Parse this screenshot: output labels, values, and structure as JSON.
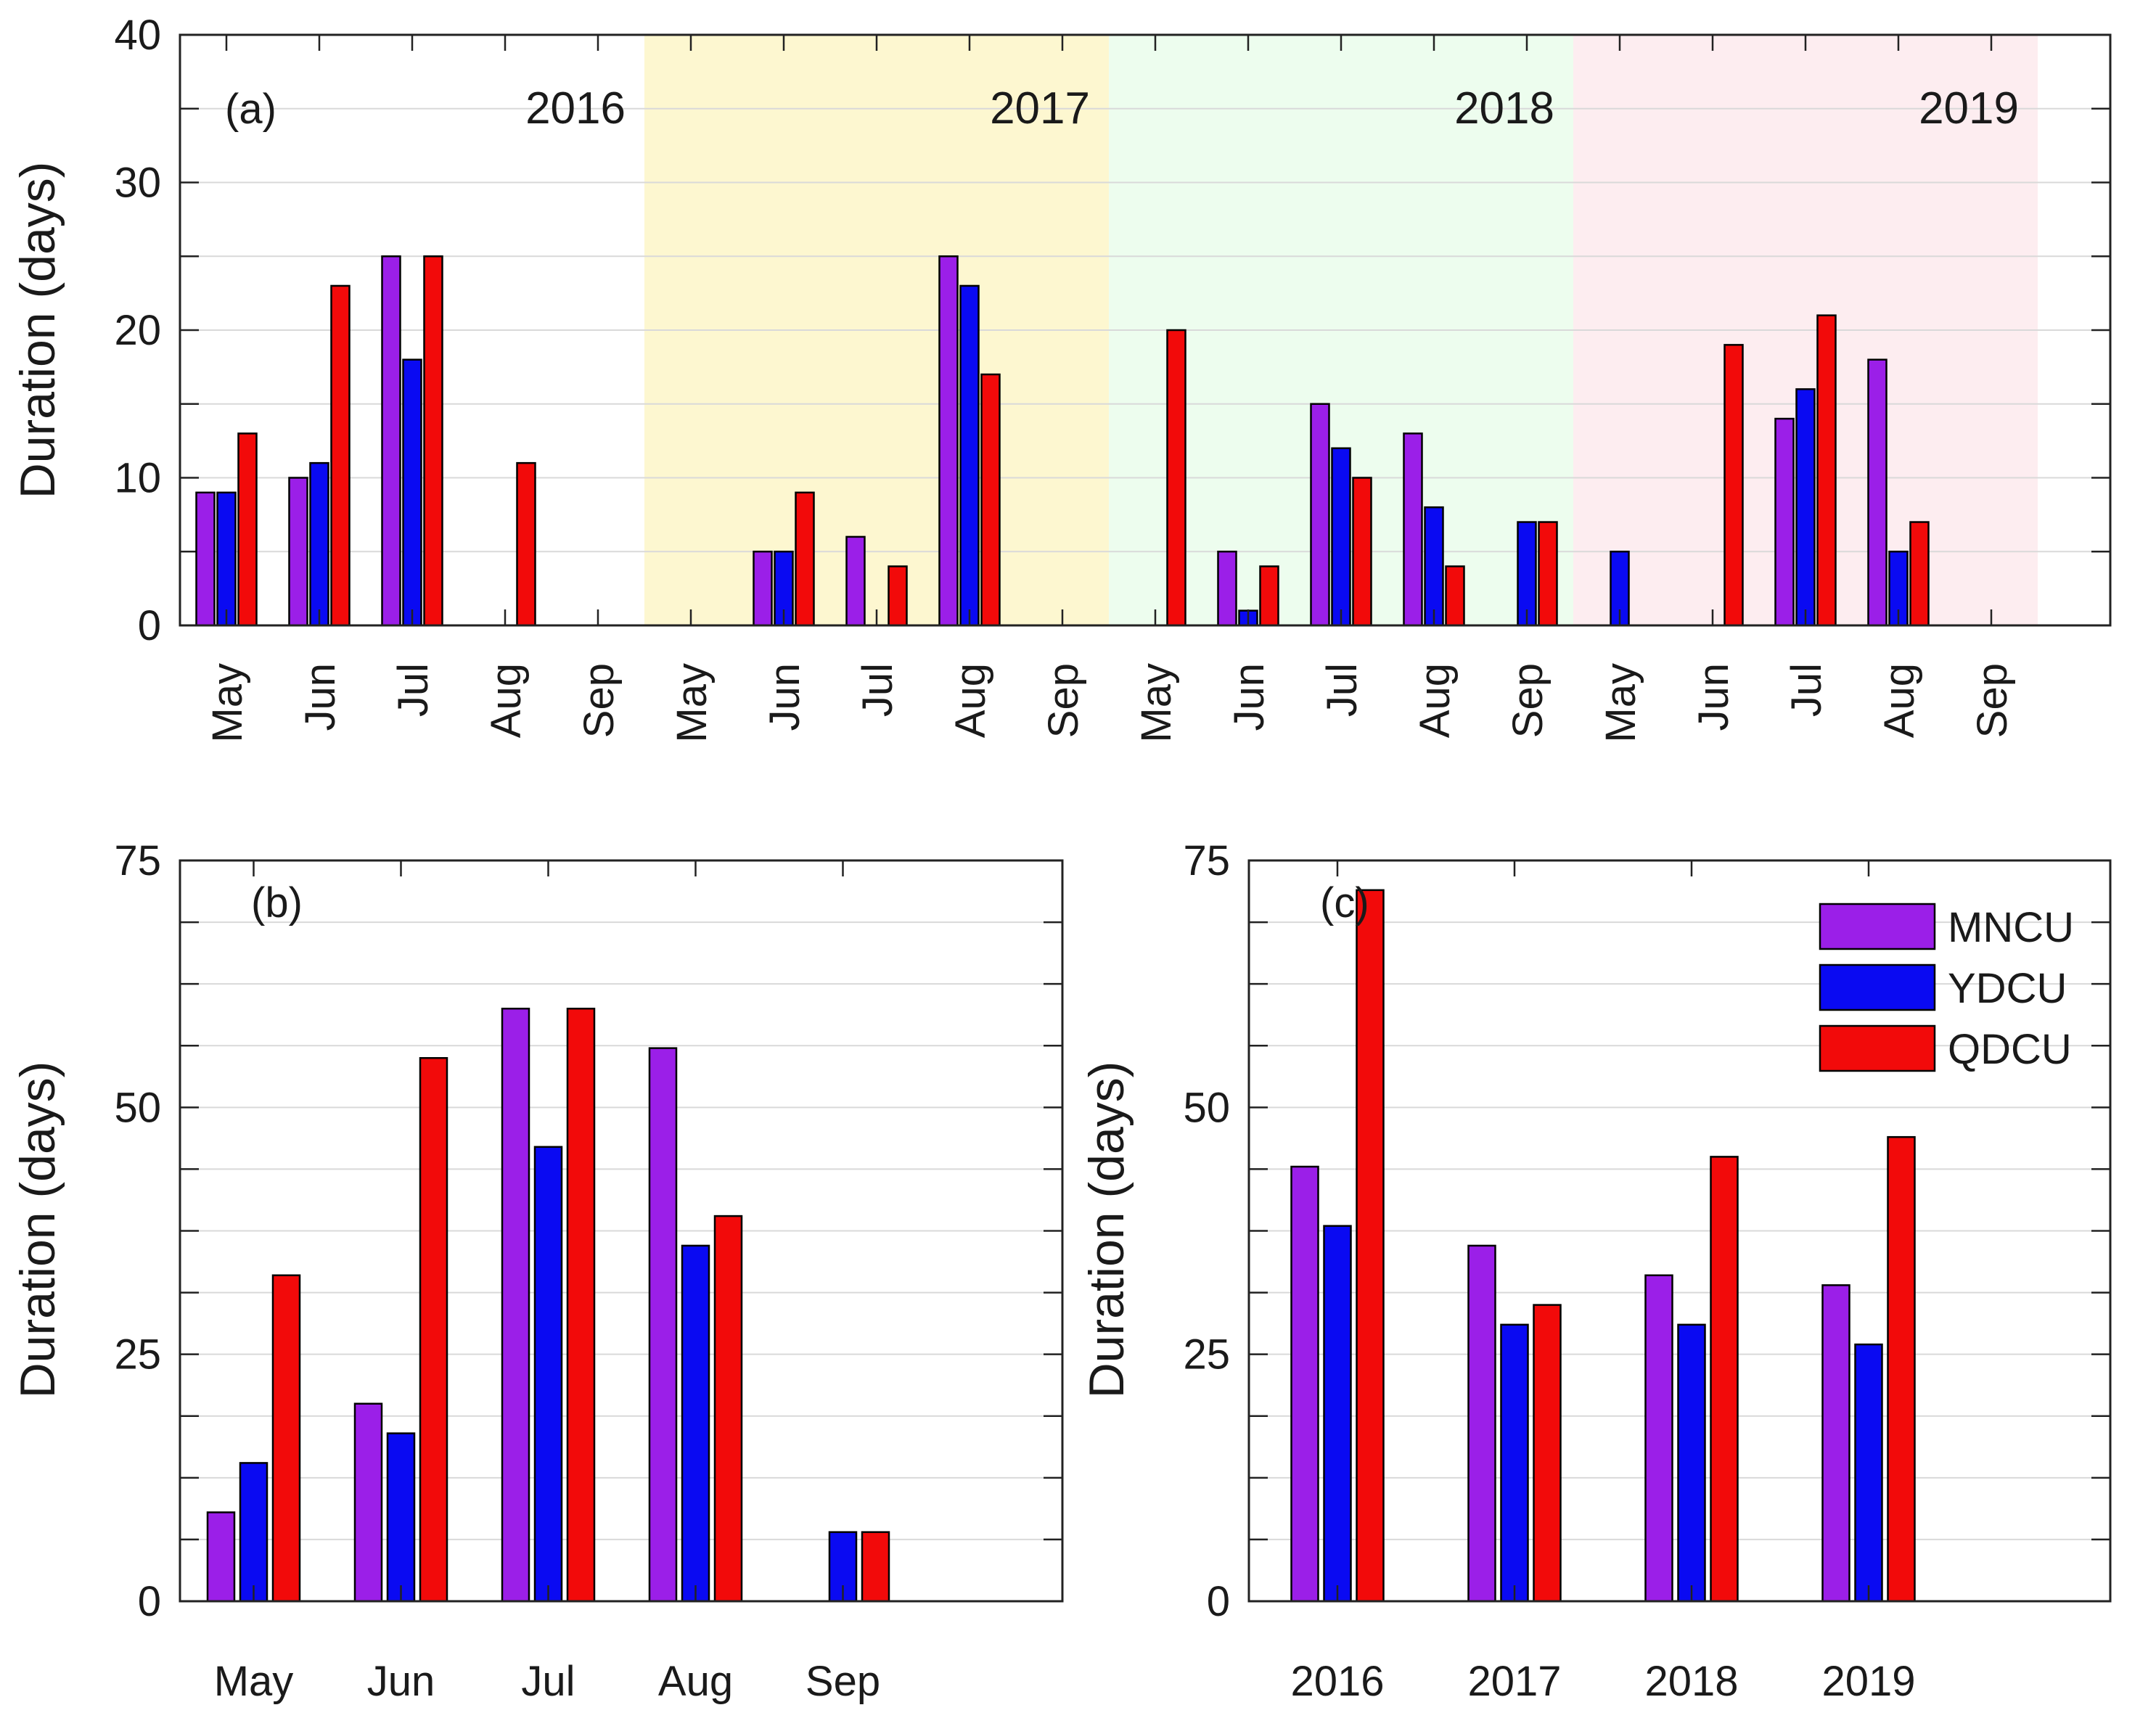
{
  "chart_data": [
    {
      "id": "a",
      "type": "bar",
      "panel_label": "(a)",
      "ylabel": "Duration (days)",
      "ylim": [
        0,
        40
      ],
      "yticks": [
        0,
        10,
        20,
        30,
        40
      ],
      "grid": true,
      "categories": [
        "May",
        "Jun",
        "Jul",
        "Aug",
        "Sep",
        "May",
        "Jun",
        "Jul",
        "Aug",
        "Sep",
        "May",
        "Jun",
        "Jul",
        "Aug",
        "Sep",
        "May",
        "Jun",
        "Jul",
        "Aug",
        "Sep"
      ],
      "groups": [
        {
          "label": "2016",
          "background": "#ffffff"
        },
        {
          "label": "2017",
          "background": "#fdf7d0"
        },
        {
          "label": "2018",
          "background": "#edfdee"
        },
        {
          "label": "2019",
          "background": "#fdedf0"
        }
      ],
      "series": [
        {
          "name": "MNCU",
          "color": "#9b1fe8",
          "values": [
            9,
            10,
            25,
            0,
            0,
            0,
            5,
            6,
            25,
            0,
            0,
            5,
            15,
            13,
            0,
            0,
            0,
            14,
            18,
            0
          ]
        },
        {
          "name": "YDCU",
          "color": "#0a0af2",
          "values": [
            9,
            11,
            18,
            0,
            0,
            0,
            5,
            0,
            23,
            0,
            0,
            1,
            12,
            8,
            7,
            5,
            0,
            16,
            5,
            0
          ]
        },
        {
          "name": "QDCU",
          "color": "#f20a0a",
          "values": [
            13,
            23,
            25,
            11,
            0,
            0,
            9,
            4,
            17,
            0,
            20,
            4,
            10,
            4,
            7,
            0,
            19,
            21,
            7,
            0
          ]
        }
      ]
    },
    {
      "id": "b",
      "type": "bar",
      "panel_label": "(b)",
      "ylabel": "Duration (days)",
      "ylim": [
        0,
        75
      ],
      "yticks": [
        0,
        25,
        50,
        75
      ],
      "grid": true,
      "categories": [
        "May",
        "Jun",
        "Jul",
        "Aug",
        "Sep"
      ],
      "series": [
        {
          "name": "MNCU",
          "color": "#9b1fe8",
          "values": [
            9,
            20,
            60,
            56,
            0
          ]
        },
        {
          "name": "YDCU",
          "color": "#0a0af2",
          "values": [
            14,
            17,
            46,
            36,
            7
          ]
        },
        {
          "name": "QDCU",
          "color": "#f20a0a",
          "values": [
            33,
            55,
            60,
            39,
            7
          ]
        }
      ]
    },
    {
      "id": "c",
      "type": "bar",
      "panel_label": "(c)",
      "ylabel": "Duration (days)",
      "ylim": [
        0,
        75
      ],
      "yticks": [
        0,
        25,
        50,
        75
      ],
      "grid": true,
      "legend": "top-right",
      "categories": [
        "2016",
        "2017",
        "2018",
        "2019"
      ],
      "series": [
        {
          "name": "MNCU",
          "color": "#9b1fe8",
          "values": [
            44,
            36,
            33,
            32
          ]
        },
        {
          "name": "YDCU",
          "color": "#0a0af2",
          "values": [
            38,
            28,
            28,
            26
          ]
        },
        {
          "name": "QDCU",
          "color": "#f20a0a",
          "values": [
            72,
            30,
            45,
            47
          ]
        }
      ]
    }
  ]
}
